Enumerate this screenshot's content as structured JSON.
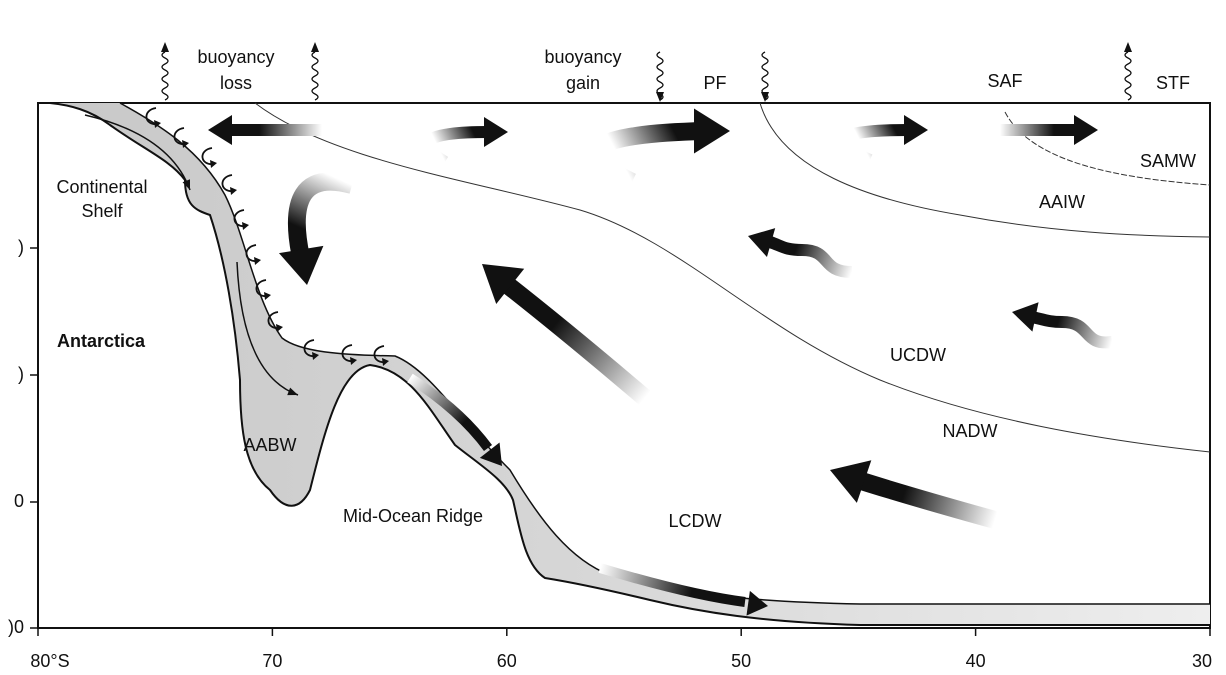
{
  "labels": {
    "buoyancy_loss": [
      "buoyancy",
      "loss"
    ],
    "buoyancy_gain": [
      "buoyancy",
      "gain"
    ],
    "pf": "PF",
    "saf": "SAF",
    "stf": "STF",
    "samw": "SAMW",
    "aaiw": "AAIW",
    "continental_shelf": [
      "Continental",
      "Shelf"
    ],
    "antarctica": "Antarctica",
    "ucdw": "UCDW",
    "nadw": "NADW",
    "aabw": "AABW",
    "mid_ocean_ridge": "Mid-Ocean Ridge",
    "lcdw": "LCDW"
  },
  "x_axis": {
    "ticks": [
      "80°S",
      "70",
      "60",
      "50",
      "40",
      "30"
    ]
  },
  "y_axis": {
    "ticks": [
      ")",
      ")",
      "0",
      ")0"
    ]
  }
}
